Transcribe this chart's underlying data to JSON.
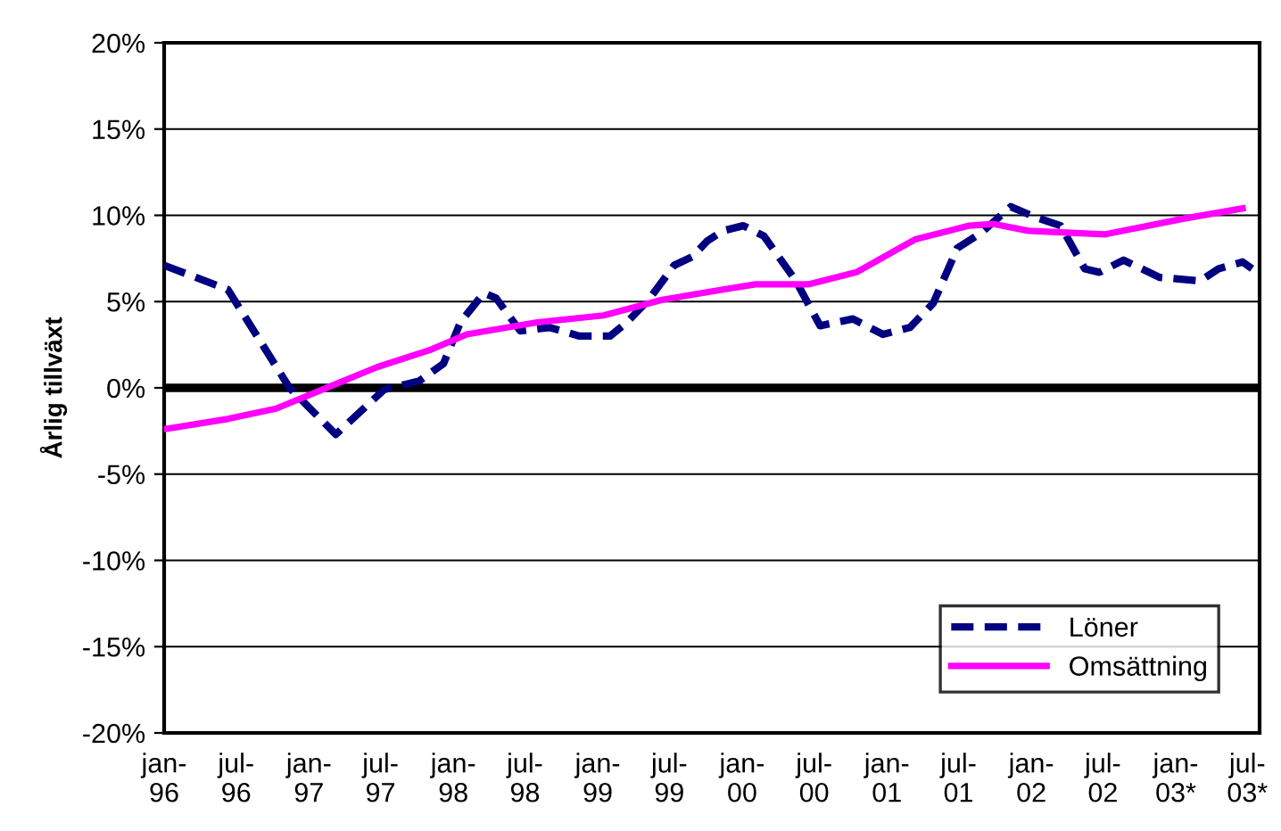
{
  "chart_data": {
    "type": "line",
    "ylabel": "Årlig tillväxt",
    "xlim": [
      "1996-01-01",
      "2003-08-01"
    ],
    "ylim": [
      -20,
      20
    ],
    "xticks": [
      {
        "value": "1996-01",
        "label": "jan-\n96"
      },
      {
        "value": "1996-07",
        "label": "jul-\n96"
      },
      {
        "value": "1997-01",
        "label": "jan-\n97"
      },
      {
        "value": "1997-07",
        "label": "jul-\n97"
      },
      {
        "value": "1998-01",
        "label": "jan-\n98"
      },
      {
        "value": "1998-07",
        "label": "jul-\n98"
      },
      {
        "value": "1999-01",
        "label": "jan-\n99"
      },
      {
        "value": "1999-07",
        "label": "jul-\n99"
      },
      {
        "value": "2000-01",
        "label": "jan-\n00"
      },
      {
        "value": "2000-07",
        "label": "jul-\n00"
      },
      {
        "value": "2001-01",
        "label": "jan-\n01"
      },
      {
        "value": "2001-07",
        "label": "jul-\n01"
      },
      {
        "value": "2002-01",
        "label": "jan-\n02"
      },
      {
        "value": "2002-07",
        "label": "jul-\n02"
      },
      {
        "value": "2003-01",
        "label": "jan-\n03*"
      },
      {
        "value": "2003-07",
        "label": "jul-\n03*"
      }
    ],
    "yticks": [
      {
        "value": -20,
        "label": "-20%"
      },
      {
        "value": -15,
        "label": "-15%"
      },
      {
        "value": -10,
        "label": "-10%"
      },
      {
        "value": -5,
        "label": "-5%"
      },
      {
        "value": 0,
        "label": "0%"
      },
      {
        "value": 5,
        "label": "5%"
      },
      {
        "value": 10,
        "label": "10%"
      },
      {
        "value": 15,
        "label": "15%"
      },
      {
        "value": 20,
        "label": "20%"
      }
    ],
    "grid": "y",
    "legend": "bottom right",
    "marker": "none",
    "ref_lines": [
      {
        "axis": "y",
        "value": 0,
        "color": "#000000"
      }
    ],
    "series": [
      {
        "name": "Löner",
        "color": "#000080",
        "line_style": "dashed",
        "x": [
          "1996-01-01",
          "1996-06-10",
          "1996-11-13",
          "1997-03-10",
          "1997-07-10",
          "1997-10-07",
          "1997-12-07",
          "1998-01-19",
          "1998-03-19",
          "1998-04-19",
          "1998-06-19",
          "1998-09-01",
          "1998-11-16",
          "1999-02-01",
          "1999-03-16",
          "1999-05-13",
          "1999-07-13",
          "1999-08-28",
          "1999-10-04",
          "1999-11-13",
          "2000-01-04",
          "2000-02-25",
          "2000-05-16",
          "2000-07-16",
          "2000-10-07",
          "2000-12-22",
          "2001-02-28",
          "2001-04-28",
          "2001-06-28",
          "2001-08-28",
          "2001-11-10",
          "2002-01-10",
          "2002-03-16",
          "2002-05-16",
          "2002-06-22",
          "2002-08-22",
          "2002-11-22",
          "2003-03-04",
          "2003-04-19",
          "2003-06-19",
          "2003-07-13"
        ],
        "values": [
          7.1,
          5.7,
          0.0,
          -2.7,
          -0.1,
          0.4,
          1.4,
          3.8,
          5.5,
          5.2,
          3.3,
          3.5,
          3.0,
          3.0,
          3.8,
          5.2,
          7.1,
          7.6,
          8.5,
          9.1,
          9.4,
          8.8,
          6.2,
          3.6,
          4.0,
          3.1,
          3.5,
          4.9,
          8.1,
          9.0,
          10.5,
          9.9,
          9.4,
          6.9,
          6.7,
          7.4,
          6.4,
          6.2,
          6.9,
          7.3,
          6.9
        ]
      },
      {
        "name": "Omsättning",
        "color": "#ff00ff",
        "line_style": "solid",
        "x": [
          "1996-01-01",
          "1996-06-10",
          "1996-10-10",
          "1997-02-25",
          "1997-06-22",
          "1997-11-04",
          "1998-02-04",
          "1998-08-01",
          "1999-01-16",
          "1999-06-13",
          "1999-11-13",
          "2000-02-04",
          "2000-06-16",
          "2000-10-16",
          "2001-03-13",
          "2001-07-28",
          "2001-09-28",
          "2001-12-25",
          "2002-07-07",
          "2003-01-19",
          "2003-06-19"
        ],
        "values": [
          -2.4,
          -1.8,
          -1.2,
          0.1,
          1.2,
          2.2,
          3.1,
          3.8,
          4.2,
          5.1,
          5.7,
          6.0,
          6.0,
          6.7,
          8.6,
          9.4,
          9.5,
          9.1,
          8.9,
          9.8,
          10.4
        ]
      }
    ]
  }
}
